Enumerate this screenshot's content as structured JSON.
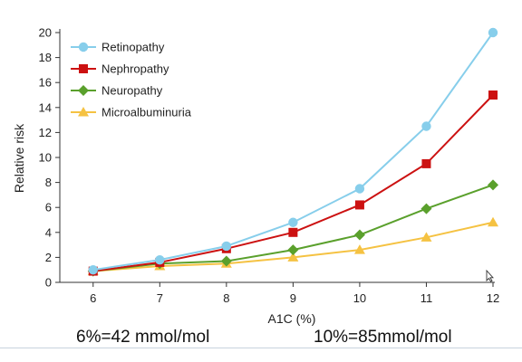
{
  "chart_data": {
    "type": "line",
    "xlabel": "A1C (%)",
    "ylabel": "Relative risk",
    "x": [
      6,
      7,
      8,
      9,
      10,
      11,
      12
    ],
    "xlim": [
      5.5,
      12
    ],
    "ylim": [
      0,
      20
    ],
    "y_ticks": [
      0,
      2,
      4,
      6,
      8,
      10,
      12,
      14,
      16,
      18,
      20
    ],
    "grid": false,
    "legend_position": "top-left",
    "series": [
      {
        "name": "Retinopathy",
        "color": "#87ceeb",
        "marker": "circle",
        "values": [
          1,
          1.8,
          2.9,
          4.8,
          7.5,
          12.5,
          20
        ]
      },
      {
        "name": "Nephropathy",
        "color": "#cc1111",
        "marker": "square",
        "values": [
          0.9,
          1.6,
          2.7,
          4.0,
          6.2,
          9.5,
          15
        ]
      },
      {
        "name": "Neuropathy",
        "color": "#5aa02c",
        "marker": "diamond",
        "values": [
          0.9,
          1.5,
          1.7,
          2.6,
          3.8,
          5.9,
          7.8
        ]
      },
      {
        "name": "Microalbuminuria",
        "color": "#f5c242",
        "marker": "triangle",
        "values": [
          0.9,
          1.3,
          1.5,
          2.0,
          2.6,
          3.6,
          4.8
        ]
      }
    ]
  },
  "footnotes": {
    "left": "6%=42 mmol/mol",
    "right": "10%=85mmol/mol"
  }
}
